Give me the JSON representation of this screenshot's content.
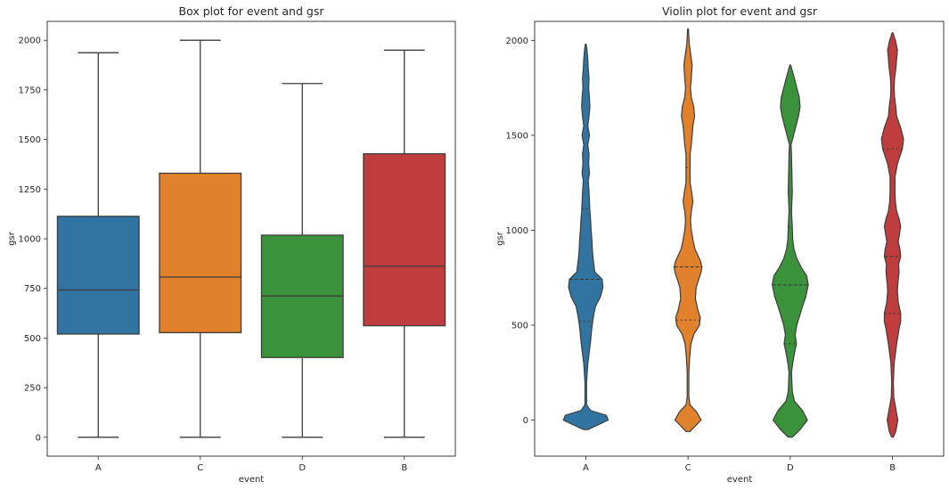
{
  "chart_data": [
    {
      "type": "box",
      "title": "Box plot for event and gsr",
      "xlabel": "event",
      "ylabel": "gsr",
      "categories": [
        "A",
        "C",
        "D",
        "B"
      ],
      "ylim": [
        -95,
        2095
      ],
      "yticks": [
        0,
        250,
        500,
        750,
        1000,
        1250,
        1500,
        1750,
        2000
      ],
      "colors": [
        "#3274a1",
        "#e1812c",
        "#3a923a",
        "#c03d3e"
      ],
      "boxes": [
        {
          "category": "A",
          "min": 0,
          "q1": 520,
          "median": 742,
          "q3": 1113,
          "max": 1937
        },
        {
          "category": "C",
          "min": 0,
          "q1": 527,
          "median": 807,
          "q3": 1330,
          "max": 2000
        },
        {
          "category": "D",
          "min": 0,
          "q1": 402,
          "median": 712,
          "q3": 1018,
          "max": 1782
        },
        {
          "category": "B",
          "min": 0,
          "q1": 562,
          "median": 862,
          "q3": 1428,
          "max": 1950
        }
      ]
    },
    {
      "type": "violin",
      "title": "Violin plot for event and gsr",
      "xlabel": "event",
      "ylabel": "gsr",
      "categories": [
        "A",
        "C",
        "D",
        "B"
      ],
      "ylim": [
        -190,
        2100
      ],
      "yticks": [
        0,
        500,
        1000,
        1500,
        2000
      ],
      "colors": [
        "#3274a1",
        "#e1812c",
        "#3a923a",
        "#c03d3e"
      ],
      "violins": [
        {
          "category": "A",
          "min": -50,
          "max": 1980,
          "q1": 520,
          "median": 742,
          "q3": 1113,
          "density": [
            [
              -50,
              0.05
            ],
            [
              -20,
              0.35
            ],
            [
              0,
              0.55
            ],
            [
              25,
              0.5
            ],
            [
              50,
              0.12
            ],
            [
              80,
              0.02
            ],
            [
              200,
              0.02
            ],
            [
              300,
              0.05
            ],
            [
              350,
              0.08
            ],
            [
              420,
              0.12
            ],
            [
              470,
              0.14
            ],
            [
              520,
              0.17
            ],
            [
              560,
              0.2
            ],
            [
              600,
              0.24
            ],
            [
              650,
              0.36
            ],
            [
              700,
              0.42
            ],
            [
              742,
              0.4
            ],
            [
              780,
              0.22
            ],
            [
              850,
              0.18
            ],
            [
              900,
              0.16
            ],
            [
              950,
              0.15
            ],
            [
              1000,
              0.13
            ],
            [
              1050,
              0.12
            ],
            [
              1100,
              0.1
            ],
            [
              1150,
              0.09
            ],
            [
              1200,
              0.08
            ],
            [
              1260,
              0.06
            ],
            [
              1300,
              0.09
            ],
            [
              1350,
              0.07
            ],
            [
              1400,
              0.08
            ],
            [
              1450,
              0.05
            ],
            [
              1500,
              0.09
            ],
            [
              1550,
              0.05
            ],
            [
              1600,
              0.08
            ],
            [
              1650,
              0.1
            ],
            [
              1700,
              0.09
            ],
            [
              1750,
              0.07
            ],
            [
              1800,
              0.08
            ],
            [
              1850,
              0.06
            ],
            [
              1900,
              0.05
            ],
            [
              1950,
              0.03
            ],
            [
              1980,
              0.01
            ]
          ]
        },
        {
          "category": "C",
          "min": -60,
          "max": 2060,
          "q1": 527,
          "median": 807,
          "q3": 1330,
          "density": [
            [
              -60,
              0.05
            ],
            [
              -30,
              0.18
            ],
            [
              0,
              0.32
            ],
            [
              40,
              0.22
            ],
            [
              80,
              0.05
            ],
            [
              120,
              0.02
            ],
            [
              250,
              0.02
            ],
            [
              330,
              0.04
            ],
            [
              400,
              0.07
            ],
            [
              450,
              0.14
            ],
            [
              500,
              0.28
            ],
            [
              540,
              0.3
            ],
            [
              580,
              0.24
            ],
            [
              640,
              0.18
            ],
            [
              700,
              0.2
            ],
            [
              780,
              0.32
            ],
            [
              807,
              0.34
            ],
            [
              840,
              0.3
            ],
            [
              900,
              0.17
            ],
            [
              950,
              0.12
            ],
            [
              1000,
              0.08
            ],
            [
              1050,
              0.06
            ],
            [
              1100,
              0.08
            ],
            [
              1150,
              0.12
            ],
            [
              1200,
              0.09
            ],
            [
              1250,
              0.05
            ],
            [
              1330,
              0.05
            ],
            [
              1400,
              0.05
            ],
            [
              1450,
              0.08
            ],
            [
              1500,
              0.1
            ],
            [
              1550,
              0.12
            ],
            [
              1600,
              0.16
            ],
            [
              1650,
              0.14
            ],
            [
              1700,
              0.08
            ],
            [
              1750,
              0.06
            ],
            [
              1800,
              0.08
            ],
            [
              1870,
              0.1
            ],
            [
              1920,
              0.07
            ],
            [
              1980,
              0.03
            ],
            [
              2060,
              0.01
            ]
          ]
        },
        {
          "category": "D",
          "min": -90,
          "max": 1870,
          "q1": 402,
          "median": 712,
          "q3": 1018,
          "density": [
            [
              -90,
              0.05
            ],
            [
              -50,
              0.24
            ],
            [
              0,
              0.42
            ],
            [
              50,
              0.3
            ],
            [
              100,
              0.1
            ],
            [
              150,
              0.05
            ],
            [
              200,
              0.04
            ],
            [
              250,
              0.03
            ],
            [
              300,
              0.06
            ],
            [
              350,
              0.1
            ],
            [
              402,
              0.15
            ],
            [
              450,
              0.12
            ],
            [
              500,
              0.16
            ],
            [
              550,
              0.23
            ],
            [
              600,
              0.3
            ],
            [
              650,
              0.38
            ],
            [
              712,
              0.44
            ],
            [
              760,
              0.4
            ],
            [
              800,
              0.28
            ],
            [
              850,
              0.16
            ],
            [
              900,
              0.09
            ],
            [
              950,
              0.06
            ],
            [
              1018,
              0.05
            ],
            [
              1100,
              0.03
            ],
            [
              1200,
              0.05
            ],
            [
              1300,
              0.04
            ],
            [
              1400,
              0.03
            ],
            [
              1450,
              0.02
            ],
            [
              1500,
              0.08
            ],
            [
              1550,
              0.14
            ],
            [
              1600,
              0.2
            ],
            [
              1650,
              0.24
            ],
            [
              1700,
              0.22
            ],
            [
              1750,
              0.16
            ],
            [
              1800,
              0.1
            ],
            [
              1870,
              0.01
            ]
          ]
        },
        {
          "category": "B",
          "min": -90,
          "max": 2040,
          "q1": 562,
          "median": 862,
          "q3": 1428,
          "density": [
            [
              -90,
              0.02
            ],
            [
              -60,
              0.08
            ],
            [
              0,
              0.13
            ],
            [
              60,
              0.08
            ],
            [
              120,
              0.03
            ],
            [
              200,
              0.02
            ],
            [
              300,
              0.04
            ],
            [
              400,
              0.1
            ],
            [
              480,
              0.16
            ],
            [
              520,
              0.2
            ],
            [
              562,
              0.2
            ],
            [
              620,
              0.14
            ],
            [
              680,
              0.12
            ],
            [
              720,
              0.13
            ],
            [
              780,
              0.16
            ],
            [
              820,
              0.15
            ],
            [
              862,
              0.2
            ],
            [
              900,
              0.18
            ],
            [
              940,
              0.14
            ],
            [
              980,
              0.17
            ],
            [
              1020,
              0.2
            ],
            [
              1060,
              0.16
            ],
            [
              1100,
              0.1
            ],
            [
              1150,
              0.07
            ],
            [
              1200,
              0.06
            ],
            [
              1280,
              0.06
            ],
            [
              1350,
              0.12
            ],
            [
              1428,
              0.24
            ],
            [
              1480,
              0.27
            ],
            [
              1540,
              0.2
            ],
            [
              1600,
              0.1
            ],
            [
              1650,
              0.08
            ],
            [
              1700,
              0.05
            ],
            [
              1750,
              0.04
            ],
            [
              1800,
              0.05
            ],
            [
              1850,
              0.08
            ],
            [
              1900,
              0.1
            ],
            [
              1950,
              0.12
            ],
            [
              2000,
              0.07
            ],
            [
              2040,
              0.01
            ]
          ]
        }
      ]
    }
  ]
}
